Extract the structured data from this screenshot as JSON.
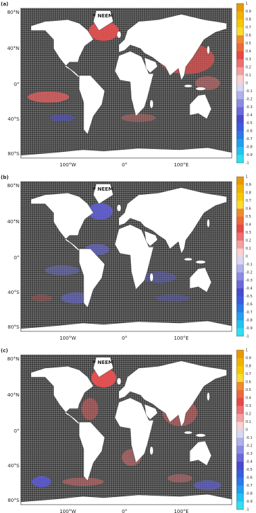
{
  "colorbar_colors": [
    "#e89a00",
    "#f0b400",
    "#f5c800",
    "#f8dc30",
    "#f08a30",
    "#ec6a3a",
    "#e84848",
    "#ee7070",
    "#f4a0a0",
    "#fad0d0",
    "#d8d8f4",
    "#b0b0ec",
    "#8c8ce4",
    "#6a6adc",
    "#4a4ad0",
    "#3a5ce0",
    "#2a7ae8",
    "#20a0f0",
    "#20c4f0",
    "#30e0f0"
  ],
  "panels": [
    {
      "label": "(a)",
      "station": "NEEM",
      "lat_labels": [
        "80°N",
        "40°N",
        "0°",
        "40°S",
        "80°S"
      ],
      "lon_labels": [
        "100°W",
        "0°",
        "100°E"
      ],
      "colorbar_ticks": [
        1,
        0.9,
        0.8,
        0.7,
        0.6,
        0.5,
        0.4,
        0.3,
        0.2,
        0.1,
        0,
        -0.1,
        -0.2,
        -0.3,
        -0.4,
        -0.5,
        -0.6,
        -0.7,
        -0.8,
        -0.9,
        -1
      ]
    },
    {
      "label": "(b)",
      "station": "NEEM",
      "lat_labels": [
        "80°N",
        "40°N",
        "0°",
        "40°S",
        "80°S"
      ],
      "lon_labels": [
        "100°W",
        "0°",
        "100°E"
      ],
      "colorbar_ticks": [
        1,
        0.9,
        0.8,
        0.7,
        0.6,
        0.5,
        0.4,
        0.3,
        0.2,
        0.1,
        0,
        -0.1,
        -0.2,
        -0.3,
        -0.4,
        -0.5,
        -0.6,
        -0.7,
        -0.8,
        -0.9,
        -1
      ]
    },
    {
      "label": "(c)",
      "station": "NEEM",
      "lat_labels": [
        "80°N",
        "40°N",
        "0°",
        "40°S",
        "80°S"
      ],
      "lon_labels": [
        "100°W",
        "0°",
        "100°E"
      ],
      "colorbar_ticks": [
        1,
        0.9,
        0.8,
        0.7,
        0.6,
        0.5,
        0.4,
        0.3,
        0.2,
        0.1,
        0,
        -0.1,
        -0.2,
        -0.3,
        -0.4,
        -0.5,
        -0.6,
        -0.7,
        -0.8,
        -0.9,
        -1
      ]
    }
  ]
}
